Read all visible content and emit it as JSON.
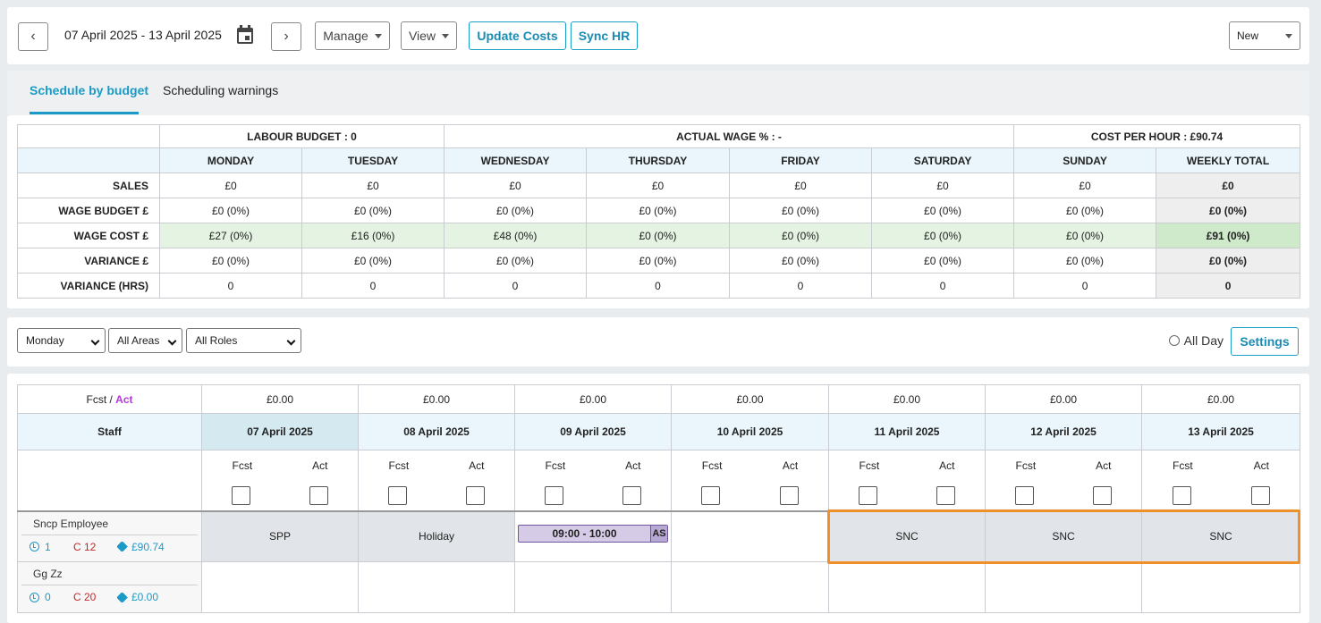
{
  "toolbar": {
    "date_range": "07 April 2025 - 13 April 2025",
    "manage_label": "Manage",
    "view_label": "View",
    "update_costs_label": "Update Costs",
    "sync_hr_label": "Sync HR",
    "new_label": "New"
  },
  "tabs": [
    {
      "label": "Schedule by budget",
      "active": true
    },
    {
      "label": "Scheduling warnings",
      "active": false
    }
  ],
  "budget": {
    "group_headers": [
      "LABOUR BUDGET : 0",
      "ACTUAL WAGE % : -",
      "COST PER HOUR : £90.74"
    ],
    "columns": [
      "MONDAY",
      "TUESDAY",
      "WEDNESDAY",
      "THURSDAY",
      "FRIDAY",
      "SATURDAY",
      "SUNDAY",
      "WEEKLY TOTAL"
    ],
    "rows": [
      {
        "label": "SALES",
        "values": [
          "£0",
          "£0",
          "£0",
          "£0",
          "£0",
          "£0",
          "£0",
          "£0"
        ]
      },
      {
        "label": "WAGE BUDGET £",
        "values": [
          "£0 (0%)",
          "£0 (0%)",
          "£0 (0%)",
          "£0 (0%)",
          "£0 (0%)",
          "£0 (0%)",
          "£0 (0%)",
          "£0 (0%)"
        ]
      },
      {
        "label": "WAGE COST £",
        "values": [
          "£27 (0%)",
          "£16 (0%)",
          "£48 (0%)",
          "£0 (0%)",
          "£0 (0%)",
          "£0 (0%)",
          "£0 (0%)",
          "£91 (0%)"
        ]
      },
      {
        "label": "VARIANCE £",
        "values": [
          "£0 (0%)",
          "£0 (0%)",
          "£0 (0%)",
          "£0 (0%)",
          "£0 (0%)",
          "£0 (0%)",
          "£0 (0%)",
          "£0 (0%)"
        ]
      },
      {
        "label": "VARIANCE (HRS)",
        "values": [
          "0",
          "0",
          "0",
          "0",
          "0",
          "0",
          "0",
          "0"
        ]
      }
    ]
  },
  "filters": {
    "day": "Monday",
    "area": "All Areas",
    "role": "All Roles",
    "all_day_label": "All Day",
    "settings_label": "Settings"
  },
  "schedule": {
    "fcst_label": "Fcst",
    "act_label": "Act",
    "staff_header": "Staff",
    "dates": [
      "07 April 2025",
      "08 April 2025",
      "09 April 2025",
      "10 April 2025",
      "11 April 2025",
      "12 April 2025",
      "13 April 2025"
    ],
    "forecasts": [
      "£0.00",
      "£0.00",
      "£0.00",
      "£0.00",
      "£0.00",
      "£0.00",
      "£0.00"
    ],
    "employees": [
      {
        "name": "Sncp Employee",
        "hours": "1",
        "c": "C 12",
        "cost": "£90.74",
        "cells": [
          "SPP",
          "Holiday",
          "",
          "",
          "SNC",
          "SNC",
          "SNC"
        ]
      },
      {
        "name": "Gg Zz",
        "hours": "0",
        "c": "C 20",
        "cost": "£0.00",
        "cells": [
          "",
          "",
          "",
          "",
          "",
          "",
          ""
        ]
      }
    ],
    "shift_time": "09:00 - 10:00",
    "shift_tag": "AS"
  },
  "colors": {
    "accent": "#1a9bc7",
    "act": "#b03ad8",
    "highlight": "#f0902b"
  }
}
